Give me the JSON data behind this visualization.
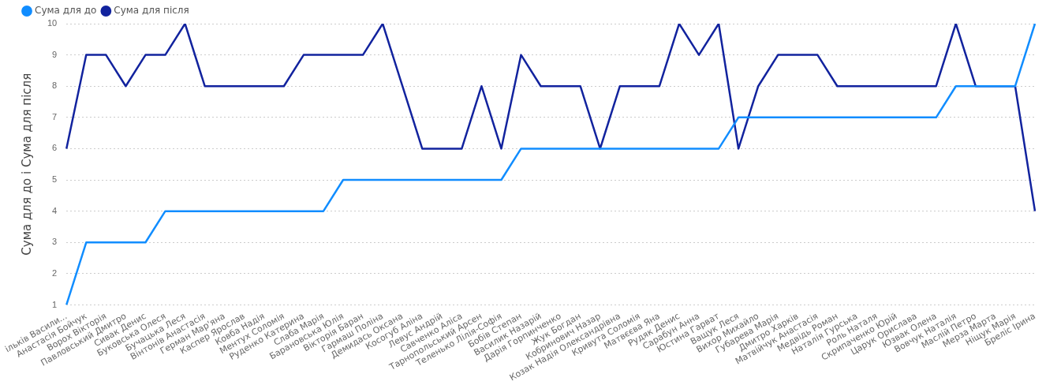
{
  "chart_data": {
    "type": "line",
    "ylabel": "Сума для до і Сума для після",
    "categories": [
      "ільків Васили...",
      "Анастасія Бойчук",
      "Ворох Вікторія",
      "Павловський Дмитро",
      "Сивак Денис",
      "Буковська Олеся",
      "Бучацька Леся",
      "Вінтонів Анастасія",
      "Герман Мар'яна",
      "Каспер Ярослав",
      "Ковба Надія",
      "Ментух Соломія",
      "Руденко Катерина",
      "Слаба Марія",
      "Барановська Юлія",
      "Вікторія Баран",
      "Гармаш Поліна",
      "Демидась Оксана",
      "Косогуб Аліна",
      "Левус Андрій",
      "Савченко Аліса",
      "Тарнопольський Арсен",
      "Теленько Лілія-Софія",
      "Бобів Степан",
      "Василик Назарій",
      "Дарія Горпинченко",
      "Жук Богдан",
      "Кобринович Назар",
      "Козак Надія Олександрівна",
      "Кривута Соломія",
      "Матвєєва Яна",
      "Рудяк Денис",
      "Сарабун Анна",
      "Юстина Гарват",
      "Ващук Леся",
      "Вихор Михайло",
      "Губарева Марія",
      "Дмитро Харків",
      "Матвійчук Анастасія",
      "Медвідь Роман",
      "Наталія Гурська",
      "Роль Наталя",
      "Скрипаченко Юрій",
      "Царук Орислава",
      "Юзвак Олена",
      "Вовчук Наталія",
      "Маслій Петро",
      "Мерза Марта",
      "Ніщук Марія",
      "Бреліс Ірина"
    ],
    "series": [
      {
        "name": "Сума для до",
        "color": "#118dff",
        "values": [
          1,
          3,
          3,
          3,
          3,
          4,
          4,
          4,
          4,
          4,
          4,
          4,
          4,
          4,
          5,
          5,
          5,
          5,
          5,
          5,
          5,
          5,
          5,
          6,
          6,
          6,
          6,
          6,
          6,
          6,
          6,
          6,
          6,
          6,
          7,
          7,
          7,
          7,
          7,
          7,
          7,
          7,
          7,
          7,
          7,
          8,
          8,
          8,
          8,
          10
        ]
      },
      {
        "name": "Сума для після",
        "color": "#12239e",
        "values": [
          6,
          9,
          9,
          8,
          9,
          9,
          10,
          8,
          8,
          8,
          8,
          8,
          9,
          9,
          9,
          9,
          10,
          8,
          6,
          6,
          6,
          8,
          6,
          9,
          8,
          8,
          8,
          6,
          8,
          8,
          8,
          10,
          9,
          10,
          6,
          8,
          9,
          9,
          9,
          8,
          8,
          8,
          8,
          8,
          8,
          10,
          8,
          8,
          8,
          4
        ]
      }
    ],
    "ylim": [
      1,
      10
    ],
    "yticks": [
      1,
      2,
      3,
      4,
      5,
      6,
      7,
      8,
      9,
      10
    ],
    "grid": "y",
    "legend": "top left",
    "marker": "none",
    "line_style": "solid"
  }
}
